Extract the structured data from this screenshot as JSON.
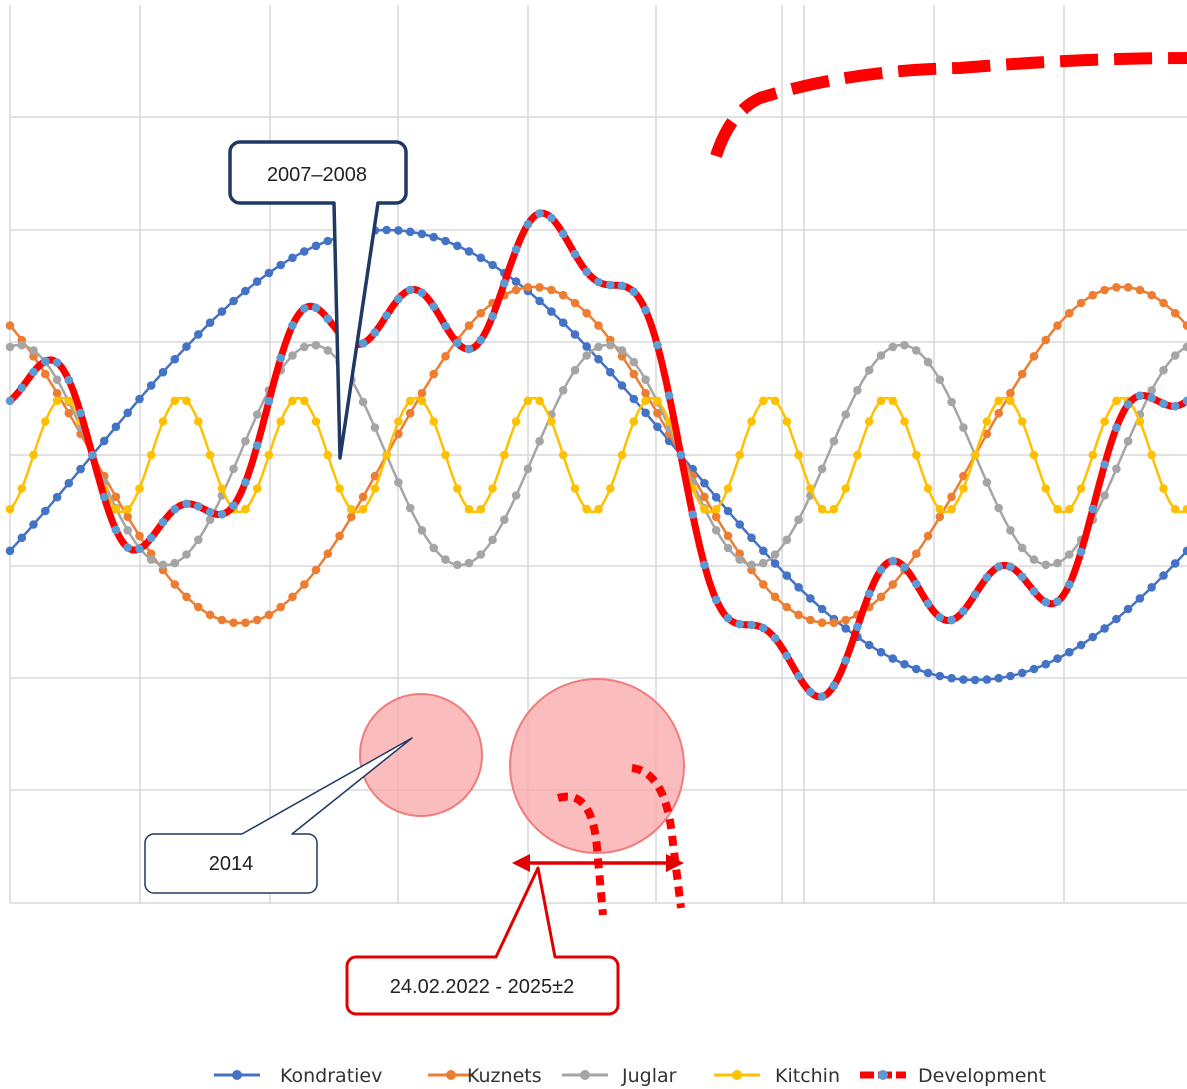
{
  "chart_data": {
    "type": "line",
    "title": "",
    "xlabel": "",
    "ylabel": "",
    "grid": true,
    "legend_position": "bottom",
    "series": [
      {
        "name": "Kondratiev",
        "color": "#4472C4"
      },
      {
        "name": "Kuznets",
        "color": "#ED7D31"
      },
      {
        "name": "Juglar",
        "color": "#A5A5A5"
      },
      {
        "name": "Kitchin",
        "color": "#FFC000"
      },
      {
        "name": "Development",
        "color": "#FF0000",
        "marker_color": "#5B9BD5"
      }
    ],
    "annotations": [
      {
        "label": "2007–2008",
        "border_color": "#1F3864"
      },
      {
        "label": "2014",
        "border_color": "#1F3864"
      },
      {
        "label": "24.02.2022  - 2025±2",
        "border_color": "#E00000"
      }
    ]
  }
}
